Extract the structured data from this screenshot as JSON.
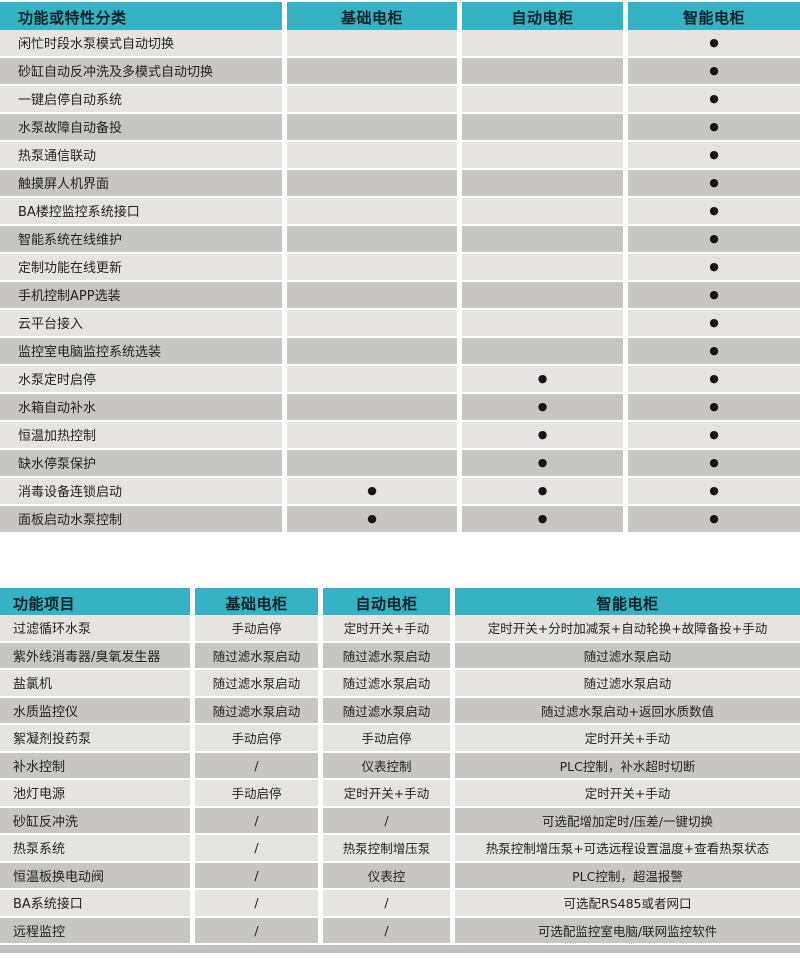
{
  "glyphs": {
    "dot": "●"
  },
  "colors": {
    "header_bg": "#35b3c4",
    "header_text": "#0e2126",
    "row_light": "#e5e4e2",
    "row_dark": "#c7c6c4",
    "row_text": "#222220",
    "page_bg": "#ffffff"
  },
  "feature_table": {
    "headers": [
      "功能或特性分类",
      "基础电柜",
      "自动电柜",
      "智能电柜"
    ],
    "rows": [
      {
        "label": "闲忙时段水泵模式自动切换",
        "marks": [
          false,
          false,
          true
        ]
      },
      {
        "label": "砂缸自动反冲洗及多模式自动切换",
        "marks": [
          false,
          false,
          true
        ]
      },
      {
        "label": "一键启停自动系统",
        "marks": [
          false,
          false,
          true
        ]
      },
      {
        "label": "水泵故障自动备投",
        "marks": [
          false,
          false,
          true
        ]
      },
      {
        "label": "热泵通信联动",
        "marks": [
          false,
          false,
          true
        ]
      },
      {
        "label": "触摸屏人机界面",
        "marks": [
          false,
          false,
          true
        ]
      },
      {
        "label": "BA楼控监控系统接口",
        "marks": [
          false,
          false,
          true
        ]
      },
      {
        "label": "智能系统在线维护",
        "marks": [
          false,
          false,
          true
        ]
      },
      {
        "label": "定制功能在线更新",
        "marks": [
          false,
          false,
          true
        ]
      },
      {
        "label": "手机控制APP选装",
        "marks": [
          false,
          false,
          true
        ]
      },
      {
        "label": "云平台接入",
        "marks": [
          false,
          false,
          true
        ]
      },
      {
        "label": "监控室电脑监控系统选装",
        "marks": [
          false,
          false,
          true
        ]
      },
      {
        "label": "水泵定时启停",
        "marks": [
          false,
          true,
          true
        ]
      },
      {
        "label": "水箱自动补水",
        "marks": [
          false,
          true,
          true
        ]
      },
      {
        "label": "恒温加热控制",
        "marks": [
          false,
          true,
          true
        ]
      },
      {
        "label": "缺水停泵保护",
        "marks": [
          false,
          true,
          true
        ]
      },
      {
        "label": "消毒设备连锁启动",
        "marks": [
          true,
          true,
          true
        ]
      },
      {
        "label": "面板启动水泵控制",
        "marks": [
          true,
          true,
          true
        ]
      }
    ]
  },
  "function_table": {
    "headers": [
      "功能项目",
      "基础电柜",
      "自动电柜",
      "智能电柜"
    ],
    "rows": [
      {
        "label": "过滤循环水泵",
        "values": [
          "手动启停",
          "定时开关+手动",
          "定时开关+分时加减泵+自动轮换+故障备投+手动"
        ]
      },
      {
        "label": "紫外线消毒器/臭氧发生器",
        "values": [
          "随过滤水泵启动",
          "随过滤水泵启动",
          "随过滤水泵启动"
        ]
      },
      {
        "label": "盐氯机",
        "values": [
          "随过滤水泵启动",
          "随过滤水泵启动",
          "随过滤水泵启动"
        ]
      },
      {
        "label": "水质监控仪",
        "values": [
          "随过滤水泵启动",
          "随过滤水泵启动",
          "随过滤水泵启动+返回水质数值"
        ]
      },
      {
        "label": "絮凝剂投药泵",
        "values": [
          "手动启停",
          "手动启停",
          "定时开关+手动"
        ]
      },
      {
        "label": "补水控制",
        "values": [
          "/",
          "仪表控制",
          "PLC控制，补水超时切断"
        ]
      },
      {
        "label": "池灯电源",
        "values": [
          "手动启停",
          "定时开关+手动",
          "定时开关+手动"
        ]
      },
      {
        "label": "砂缸反冲洗",
        "values": [
          "/",
          "/",
          "可选配增加定时/压差/一键切换"
        ]
      },
      {
        "label": "热泵系统",
        "values": [
          "/",
          "热泵控制增压泵",
          "热泵控制增压泵+可选远程设置温度+查看热泵状态"
        ]
      },
      {
        "label": "恒温板换电动阀",
        "values": [
          "/",
          "仪表控",
          "PLC控制，超温报警"
        ]
      },
      {
        "label": "BA系统接口",
        "values": [
          "/",
          "/",
          "可选配RS485或者网口"
        ]
      },
      {
        "label": "远程监控",
        "values": [
          "/",
          "/",
          "可选配监控室电脑/联网监控软件"
        ]
      }
    ]
  }
}
